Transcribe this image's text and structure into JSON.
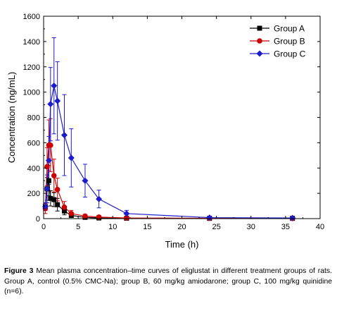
{
  "chart_data": {
    "type": "line",
    "xlabel": "Time (h)",
    "ylabel": "Concentration (ng/mL)",
    "xlim": [
      0,
      40
    ],
    "ylim": [
      0,
      1600
    ],
    "xticks": [
      0,
      5,
      10,
      15,
      20,
      25,
      30,
      35,
      40
    ],
    "yticks": [
      0,
      200,
      400,
      600,
      800,
      1000,
      1200,
      1400,
      1600
    ],
    "xtick_labels": [
      "0",
      "5",
      "10",
      "15",
      "20",
      "25",
      "30",
      "35",
      "40"
    ],
    "ytick_labels": [
      "0",
      "200",
      "400",
      "600",
      "800",
      "1000",
      "1200",
      "1400",
      "1600"
    ],
    "grid": false,
    "legend_position": "top-right",
    "series": [
      {
        "name": "Group A",
        "color": "#000000",
        "marker": "square",
        "x": [
          0.25,
          0.5,
          0.75,
          1,
          1.5,
          2,
          3,
          4,
          6,
          8,
          12,
          24,
          36
        ],
        "y": [
          95,
          235,
          300,
          160,
          150,
          110,
          60,
          25,
          10,
          5,
          3,
          2,
          2
        ],
        "error": [
          30,
          90,
          120,
          60,
          55,
          50,
          30,
          15,
          6,
          4,
          2,
          1,
          1
        ]
      },
      {
        "name": "Group B",
        "color": "#cc0000",
        "marker": "circle",
        "x": [
          0.25,
          0.5,
          0.75,
          1,
          1.5,
          2,
          3,
          4,
          6,
          8,
          12,
          24,
          36
        ],
        "y": [
          80,
          410,
          580,
          580,
          340,
          230,
          90,
          40,
          20,
          12,
          5,
          3,
          2
        ],
        "error": [
          40,
          150,
          200,
          210,
          130,
          90,
          45,
          25,
          12,
          8,
          4,
          2,
          1
        ]
      },
      {
        "name": "Group C",
        "color": "#1c1ccc",
        "marker": "diamond",
        "x": [
          0.25,
          0.5,
          0.75,
          1,
          1.5,
          2,
          3,
          4,
          6,
          8,
          12,
          24,
          36
        ],
        "y": [
          95,
          235,
          460,
          905,
          1050,
          930,
          660,
          480,
          300,
          155,
          40,
          8,
          5
        ],
        "error": [
          30,
          110,
          190,
          290,
          380,
          310,
          320,
          230,
          130,
          70,
          25,
          5,
          3
        ]
      }
    ]
  },
  "caption": {
    "figure_label": "Figure 3",
    "text": " Mean plasma concentration–time curves of eliglustat in different treatment groups of rats. Group A, control (0.5% CMC-Na); group B, 60 mg/kg amiodarone; group C, 100 mg/kg quinidine (n=6)."
  }
}
